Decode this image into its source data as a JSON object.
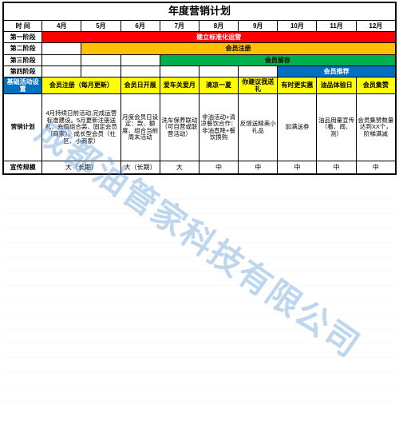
{
  "title": "年度营销计划",
  "col_label_width": 48,
  "months": [
    "4月",
    "5月",
    "6月",
    "7月",
    "8月",
    "9月",
    "10月",
    "11月",
    "12月"
  ],
  "row_time_label": "时 间",
  "phases": [
    {
      "label": "第一阶段",
      "bar_label": "建立标准化运营",
      "bg": "#ff0000",
      "fg": "#ffffff",
      "start": 0,
      "span": 9
    },
    {
      "label": "第二阶段",
      "bar_label": "会员注册",
      "bg": "#ffc000",
      "fg": "#000000",
      "start": 1,
      "span": 8
    },
    {
      "label": "第三阶段",
      "bar_label": "会员留存",
      "bg": "#00b050",
      "fg": "#000000",
      "start": 3,
      "span": 6
    },
    {
      "label": "第四阶段",
      "bar_label": "会员推荐",
      "bg": "#0070c0",
      "fg": "#ffffff",
      "start": 6,
      "span": 3
    }
  ],
  "base_row": {
    "label": "基础活动设置",
    "label_bg": "#0070c0",
    "label_fg": "#ffffff",
    "cells": [
      {
        "text": "会员注册（每月更新）",
        "bg": "#ffff00",
        "span": 2
      },
      {
        "text": "会员日开展",
        "bg": "#ffff00",
        "span": 1
      },
      {
        "text": "爱车关爱月",
        "bg": "#ffff00",
        "span": 1
      },
      {
        "text": "清凉一夏",
        "bg": "#ffff00",
        "span": 1
      },
      {
        "text": "你建议我送礼",
        "bg": "#ffff00",
        "span": 1
      },
      {
        "text": "有时更实惠",
        "bg": "#ffff00",
        "span": 1
      },
      {
        "text": "油品体验日",
        "bg": "#ffff00",
        "span": 1
      },
      {
        "text": "会员集赞",
        "bg": "#ffff00",
        "span": 1
      }
    ]
  },
  "plan_row": {
    "label": "营销计划",
    "cells": [
      {
        "text": "4月持续日前活动,完成运营标准建设。5月更新注册送礼、充值组合装、固定会员（商家）、成长型会员（社区、小商家）",
        "span": 2
      },
      {
        "text": "月度会员日设定：款、额度、组合当前周末活动",
        "span": 1
      },
      {
        "text": "洗车保养联动（可自营或联营活动）",
        "span": 1
      },
      {
        "text": "非油活动+清凉餐饮合作：非油直降+餐饮换购",
        "span": 1
      },
      {
        "text": "反馈送精美小礼品",
        "span": 1
      },
      {
        "text": "加满送券",
        "span": 1
      },
      {
        "text": "油品用量宣传（看、闻、测）",
        "span": 1
      },
      {
        "text": "会员集赞数量达到XX个，阶梯满减",
        "span": 1
      }
    ]
  },
  "scale_row": {
    "label": "宣传规模",
    "cells": [
      {
        "text": "大（长期）",
        "span": 2
      },
      {
        "text": "大（长期）",
        "span": 1
      },
      {
        "text": "大",
        "span": 1
      },
      {
        "text": "中",
        "span": 1
      },
      {
        "text": "中",
        "span": 1
      },
      {
        "text": "中",
        "span": 1
      },
      {
        "text": "中",
        "span": 1
      },
      {
        "text": "中",
        "span": 1
      }
    ]
  },
  "watermark": "成都油管家科技有限公司",
  "colors": {
    "border": "#000000",
    "header_bg": "#ffffff",
    "yellow": "#ffff00"
  }
}
